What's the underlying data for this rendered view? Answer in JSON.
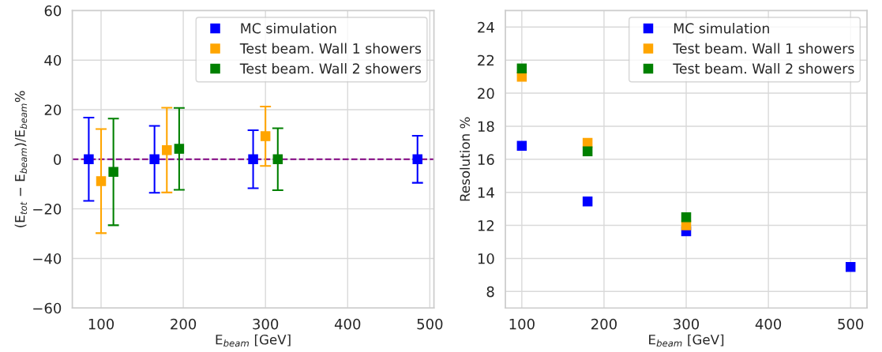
{
  "chart_data": [
    {
      "type": "scatter",
      "xlabel": "E$_{beam}$ [GeV]",
      "ylabel": "(E$_{tot}$ − E$_{beam}$)/E$_{beam}$%",
      "xlim": [
        65,
        505
      ],
      "ylim": [
        -60,
        60
      ],
      "xticks": [
        100,
        200,
        300,
        400,
        500
      ],
      "yticks": [
        {
          "value": -60,
          "label": "−60"
        },
        {
          "value": -40,
          "label": "−40"
        },
        {
          "value": -20,
          "label": "−20"
        },
        0,
        20,
        40,
        60
      ],
      "grid": true,
      "legend": "top right",
      "marker": "square",
      "ref_lines": [
        {
          "axis": "y",
          "value": 0,
          "color": "#800080",
          "line_style": "dashed"
        }
      ],
      "series": [
        {
          "name": "MC simulation",
          "color": "#0000ff",
          "x": [
            85,
            165,
            285,
            485
          ],
          "values": [
            0,
            0,
            0,
            0
          ],
          "errors": [
            16.8,
            13.5,
            11.7,
            9.5
          ]
        },
        {
          "name": "Test beam. Wall 1 showers",
          "color": "#ffa500",
          "x": [
            100,
            180,
            300
          ],
          "values": [
            -8.8,
            3.7,
            9.3
          ],
          "errors": [
            21,
            17.1,
            12
          ]
        },
        {
          "name": "Test beam. Wall 2 showers",
          "color": "#008000",
          "x": [
            115,
            195,
            315
          ],
          "values": [
            -5.1,
            4.2,
            0
          ],
          "errors": [
            21.5,
            16.5,
            12.5
          ]
        }
      ]
    },
    {
      "type": "scatter",
      "xlabel": "E$_{beam}$ [GeV]",
      "ylabel": "Resolution %",
      "xlim": [
        80,
        520
      ],
      "ylim": [
        7,
        25
      ],
      "xticks": [
        100,
        200,
        300,
        400,
        500
      ],
      "yticks": [
        8,
        10,
        12,
        14,
        16,
        18,
        20,
        22,
        24
      ],
      "grid": true,
      "legend": "top right",
      "marker": "square",
      "series": [
        {
          "name": "MC simulation",
          "color": "#0000ff",
          "x": [
            100,
            180,
            300,
            500
          ],
          "values": [
            16.82,
            13.45,
            11.64,
            9.48
          ]
        },
        {
          "name": "Test beam. Wall 1 showers",
          "color": "#ffa500",
          "x": [
            100,
            180,
            300
          ],
          "values": [
            21.0,
            17.0,
            12.0
          ]
        },
        {
          "name": "Test beam. Wall 2 showers",
          "color": "#008000",
          "x": [
            100,
            180,
            300
          ],
          "values": [
            21.5,
            16.48,
            12.49
          ]
        }
      ]
    }
  ]
}
